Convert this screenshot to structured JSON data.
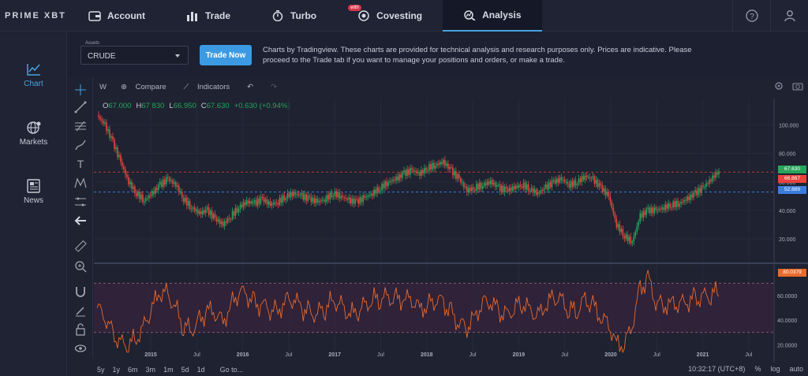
{
  "brand": "PRIME XBT",
  "nav": {
    "account": "Account",
    "trade": "Trade",
    "turbo": "Turbo",
    "covesting": "Covesting",
    "covesting_badge": "with",
    "analysis": "Analysis"
  },
  "sidebar": {
    "items": [
      {
        "label": "Chart"
      },
      {
        "label": "Markets"
      },
      {
        "label": "News"
      }
    ]
  },
  "assets": {
    "label": "Assets",
    "selected": "CRUDE"
  },
  "trade_now": "Trade Now",
  "disclaimer": "Charts by Tradingview. These charts are provided for technical analysis and research purposes only. Prices are indicative. Please proceed to the Trade tab if you want to manage your positions and orders, or make a trade.",
  "chart_toolbar": {
    "interval": "W",
    "compare": "Compare",
    "indicators": "Indicators"
  },
  "ohlc": {
    "o_label": "O",
    "o": "67.000",
    "h_label": "H",
    "h": "67.830",
    "l_label": "L",
    "l": "66.950",
    "c_label": "C",
    "c": "67.630",
    "change": "+0.630 (+0.94%)"
  },
  "price_markers": {
    "last": "67.630",
    "red": "66.867",
    "blue": "52.889",
    "indicator": "80.0379"
  },
  "colors": {
    "up": "#26a65b",
    "down": "#e8433c",
    "accent": "#3b9ae1",
    "indicator_line": "#e86a2c"
  },
  "bottombar": {
    "timeframes": [
      "5y",
      "1y",
      "6m",
      "3m",
      "1m",
      "5d",
      "1d"
    ],
    "goto": "Go to...",
    "time": "10:32:17 (UTC+8)",
    "pct": "%",
    "log": "log",
    "auto": "auto"
  },
  "chart_data": {
    "type": "candlestick",
    "title": "",
    "x_ticks": [
      "2015",
      "Jul",
      "2016",
      "Jul",
      "2017",
      "Jul",
      "2018",
      "Jul",
      "2019",
      "Jul",
      "2020",
      "Jul",
      "2021",
      "Jul"
    ],
    "y_ticks": [
      "100.000",
      "80.000",
      "60.000",
      "40.000",
      "20.000"
    ],
    "ylim": [
      5,
      112
    ],
    "close_series": {
      "x_start": 2014.83,
      "x_step_years": 0.1,
      "values": [
        107,
        100,
        88,
        74,
        60,
        52,
        47,
        52,
        58,
        62,
        58,
        48,
        42,
        38,
        40,
        34,
        30,
        36,
        42,
        46,
        45,
        48,
        44,
        46,
        50,
        52,
        50,
        48,
        46,
        48,
        52,
        50,
        47,
        46,
        49,
        52,
        56,
        60,
        62,
        66,
        68,
        66,
        70,
        72,
        74,
        68,
        62,
        54,
        56,
        58,
        60,
        56,
        54,
        56,
        58,
        55,
        52,
        56,
        60,
        62,
        58,
        60,
        64,
        62,
        56,
        50,
        30,
        22,
        18,
        36,
        40,
        40,
        42,
        44,
        45,
        48,
        52,
        56,
        62,
        67.6
      ]
    },
    "levels": {
      "red_dashed": 66.867,
      "blue_dashed": 52.889
    },
    "indicator": {
      "name": "",
      "y_ticks": [
        "60.0000",
        "40.0000",
        "20.0000"
      ],
      "ylim": [
        10,
        85
      ],
      "bands": [
        70,
        30
      ],
      "last": 80.0379
    }
  }
}
